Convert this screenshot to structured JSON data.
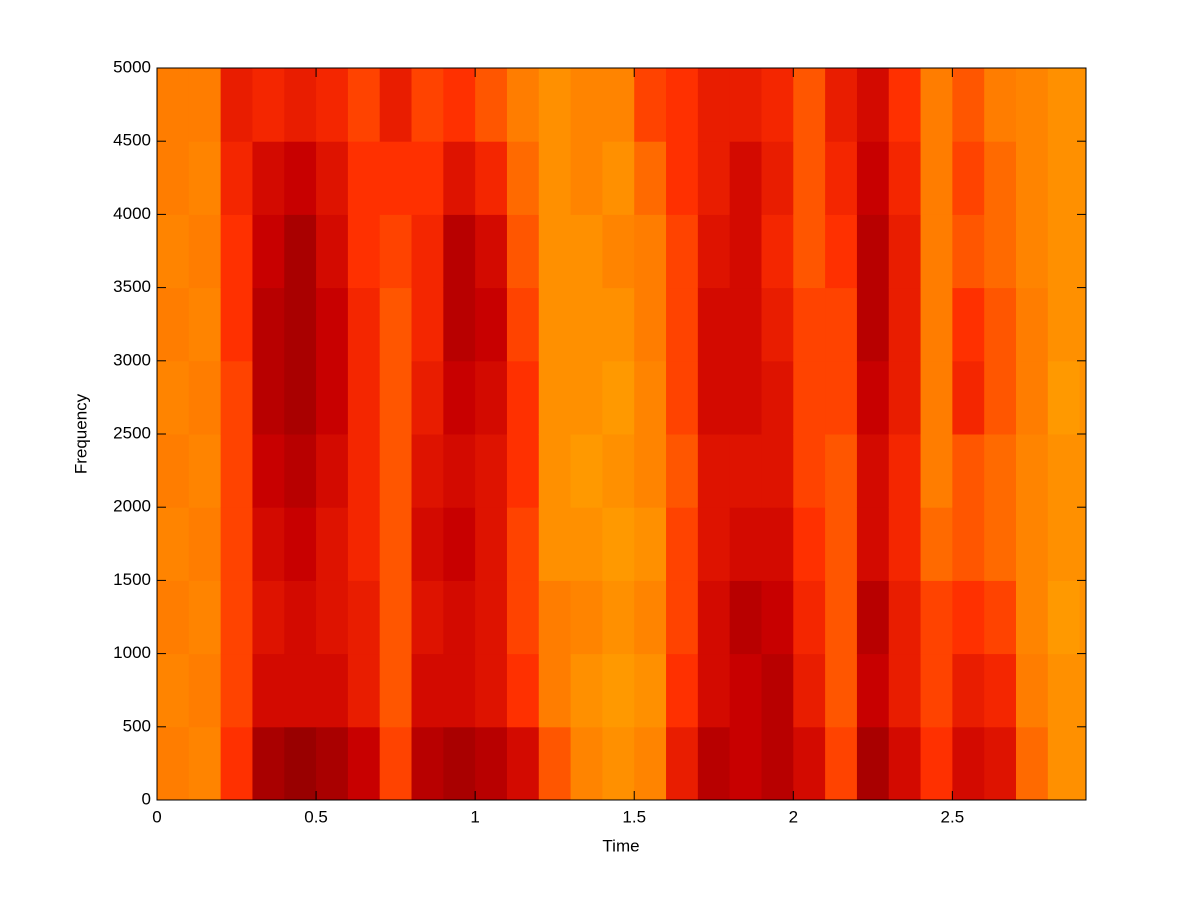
{
  "chart_data": {
    "type": "heatmap",
    "xlabel": "Time",
    "ylabel": "Frequency",
    "xlim": [
      0,
      2.92
    ],
    "ylim": [
      0,
      5000
    ],
    "xticks": [
      0,
      0.5,
      1,
      1.5,
      2,
      2.5
    ],
    "yticks": [
      0,
      500,
      1000,
      1500,
      2000,
      2500,
      3000,
      3500,
      4000,
      4500,
      5000
    ],
    "colorscale": [
      "#7a0000",
      "#c80000",
      "#ff3000",
      "#ff9000",
      "#ffd800"
    ],
    "x": [
      0.05,
      0.15,
      0.25,
      0.35,
      0.45,
      0.55,
      0.65,
      0.75,
      0.85,
      0.95,
      1.05,
      1.15,
      1.25,
      1.35,
      1.45,
      1.55,
      1.65,
      1.75,
      1.85,
      1.95,
      2.05,
      2.15,
      2.25,
      2.35,
      2.45,
      2.55,
      2.65,
      2.75,
      2.85,
      2.95
    ],
    "y": [
      250,
      750,
      1250,
      1750,
      2250,
      2750,
      3250,
      3750,
      4250,
      4750
    ],
    "values": [
      [
        0.7,
        0.72,
        0.7,
        0.72,
        0.7,
        0.72,
        0.7,
        0.72,
        0.7,
        0.7
      ],
      [
        0.72,
        0.7,
        0.72,
        0.7,
        0.72,
        0.7,
        0.72,
        0.7,
        0.72,
        0.7
      ],
      [
        0.5,
        0.55,
        0.55,
        0.55,
        0.55,
        0.55,
        0.5,
        0.5,
        0.45,
        0.4
      ],
      [
        0.15,
        0.3,
        0.35,
        0.3,
        0.25,
        0.2,
        0.2,
        0.25,
        0.3,
        0.45
      ],
      [
        0.1,
        0.3,
        0.3,
        0.25,
        0.2,
        0.15,
        0.15,
        0.15,
        0.25,
        0.4
      ],
      [
        0.15,
        0.3,
        0.35,
        0.35,
        0.3,
        0.25,
        0.25,
        0.3,
        0.35,
        0.45
      ],
      [
        0.25,
        0.4,
        0.4,
        0.45,
        0.45,
        0.45,
        0.45,
        0.5,
        0.5,
        0.55
      ],
      [
        0.55,
        0.6,
        0.6,
        0.6,
        0.6,
        0.6,
        0.6,
        0.55,
        0.5,
        0.4
      ],
      [
        0.2,
        0.3,
        0.35,
        0.3,
        0.35,
        0.4,
        0.45,
        0.45,
        0.5,
        0.55
      ],
      [
        0.15,
        0.3,
        0.3,
        0.25,
        0.3,
        0.25,
        0.2,
        0.2,
        0.35,
        0.5
      ],
      [
        0.2,
        0.35,
        0.35,
        0.35,
        0.35,
        0.3,
        0.25,
        0.3,
        0.45,
        0.6
      ],
      [
        0.3,
        0.5,
        0.55,
        0.55,
        0.5,
        0.5,
        0.55,
        0.6,
        0.65,
        0.7
      ],
      [
        0.6,
        0.7,
        0.7,
        0.75,
        0.75,
        0.75,
        0.75,
        0.75,
        0.75,
        0.75
      ],
      [
        0.72,
        0.75,
        0.72,
        0.75,
        0.78,
        0.75,
        0.75,
        0.75,
        0.72,
        0.72
      ],
      [
        0.75,
        0.78,
        0.75,
        0.78,
        0.75,
        0.78,
        0.75,
        0.72,
        0.75,
        0.72
      ],
      [
        0.72,
        0.75,
        0.72,
        0.75,
        0.72,
        0.72,
        0.7,
        0.7,
        0.65,
        0.55
      ],
      [
        0.4,
        0.5,
        0.55,
        0.55,
        0.6,
        0.55,
        0.55,
        0.55,
        0.5,
        0.5
      ],
      [
        0.2,
        0.3,
        0.3,
        0.35,
        0.35,
        0.3,
        0.3,
        0.35,
        0.4,
        0.4
      ],
      [
        0.25,
        0.25,
        0.2,
        0.3,
        0.35,
        0.3,
        0.3,
        0.3,
        0.3,
        0.4
      ],
      [
        0.2,
        0.2,
        0.25,
        0.3,
        0.35,
        0.35,
        0.4,
        0.45,
        0.4,
        0.45
      ],
      [
        0.3,
        0.4,
        0.45,
        0.5,
        0.55,
        0.55,
        0.55,
        0.6,
        0.6,
        0.6
      ],
      [
        0.55,
        0.6,
        0.6,
        0.6,
        0.6,
        0.55,
        0.55,
        0.5,
        0.45,
        0.4
      ],
      [
        0.15,
        0.25,
        0.2,
        0.3,
        0.3,
        0.25,
        0.2,
        0.2,
        0.25,
        0.3
      ],
      [
        0.3,
        0.4,
        0.4,
        0.45,
        0.45,
        0.4,
        0.4,
        0.4,
        0.45,
        0.5
      ],
      [
        0.5,
        0.55,
        0.55,
        0.65,
        0.7,
        0.7,
        0.7,
        0.7,
        0.7,
        0.7
      ],
      [
        0.3,
        0.4,
        0.5,
        0.6,
        0.6,
        0.45,
        0.5,
        0.6,
        0.55,
        0.6
      ],
      [
        0.35,
        0.45,
        0.55,
        0.65,
        0.65,
        0.6,
        0.6,
        0.65,
        0.65,
        0.7
      ],
      [
        0.65,
        0.7,
        0.72,
        0.72,
        0.72,
        0.7,
        0.7,
        0.72,
        0.72,
        0.72
      ],
      [
        0.75,
        0.75,
        0.78,
        0.75,
        0.75,
        0.78,
        0.75,
        0.75,
        0.75,
        0.75
      ],
      [
        0.75,
        0.75,
        0.75,
        0.75,
        0.75,
        0.75,
        0.75,
        0.75,
        0.75,
        0.75
      ]
    ]
  }
}
